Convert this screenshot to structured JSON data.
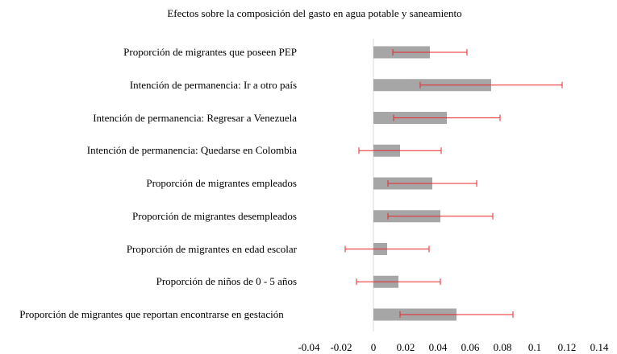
{
  "chart_data": {
    "type": "bar",
    "orientation": "horizontal",
    "title": "Efectos sobre la composición del gasto en agua potable y saneamiento",
    "categories": [
      "Proporción de migrantes que poseen PEP",
      "Intención de permanencia: Ir a otro país",
      "Intención de permanencia: Regresar a Venezuela",
      "Intención de permanencia: Quedarse en Colombia",
      "Proporción de migrantes empleados",
      "Proporción de migrantes  desempleados",
      "Proporción de migrantes en edad escolar",
      "Proporción de niños de 0 - 5 años",
      "Proporción de migrantes que reportan encontrarse en gestación"
    ],
    "values": [
      0.035,
      0.073,
      0.0455,
      0.0165,
      0.0365,
      0.0415,
      0.0085,
      0.0155,
      0.0515
    ],
    "errors": [
      0.023,
      0.044,
      0.033,
      0.0255,
      0.0275,
      0.0325,
      0.026,
      0.026,
      0.035
    ],
    "color": "#a6a6a6",
    "error_color": "#e8262a",
    "xlim": [
      -0.04,
      0.14
    ],
    "xticks": [
      -0.04,
      -0.02,
      0,
      0.02,
      0.04,
      0.06,
      0.08,
      0.1,
      0.12,
      0.14
    ],
    "grid": false
  }
}
